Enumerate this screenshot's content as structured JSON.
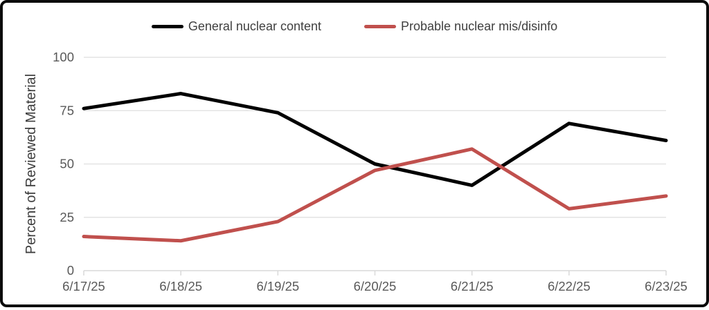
{
  "chart_data": {
    "type": "line",
    "title": "",
    "xlabel": "",
    "ylabel": "Percent of Reviewed Material",
    "categories": [
      "6/17/25",
      "6/18/25",
      "6/19/25",
      "6/20/25",
      "6/21/25",
      "6/22/25",
      "6/23/25"
    ],
    "series": [
      {
        "name": "General nuclear content",
        "color": "#000000",
        "values": [
          76,
          83,
          74,
          50,
          40,
          69,
          61
        ]
      },
      {
        "name": "Probable nuclear mis/disinfo",
        "color": "#c0504d",
        "values": [
          16,
          14,
          23,
          47,
          57,
          29,
          35
        ]
      }
    ],
    "ylim": [
      0,
      100
    ],
    "yticks": [
      0,
      25,
      50,
      75,
      100
    ],
    "grid": true,
    "legend_position": "top"
  },
  "style": {
    "gridline_color": "#e3e3e3",
    "axis_tick_color": "#d9d9d9",
    "tick_label_color": "#595959",
    "frame_border_color": "#0a0a0a",
    "background_color": "#ffffff"
  }
}
